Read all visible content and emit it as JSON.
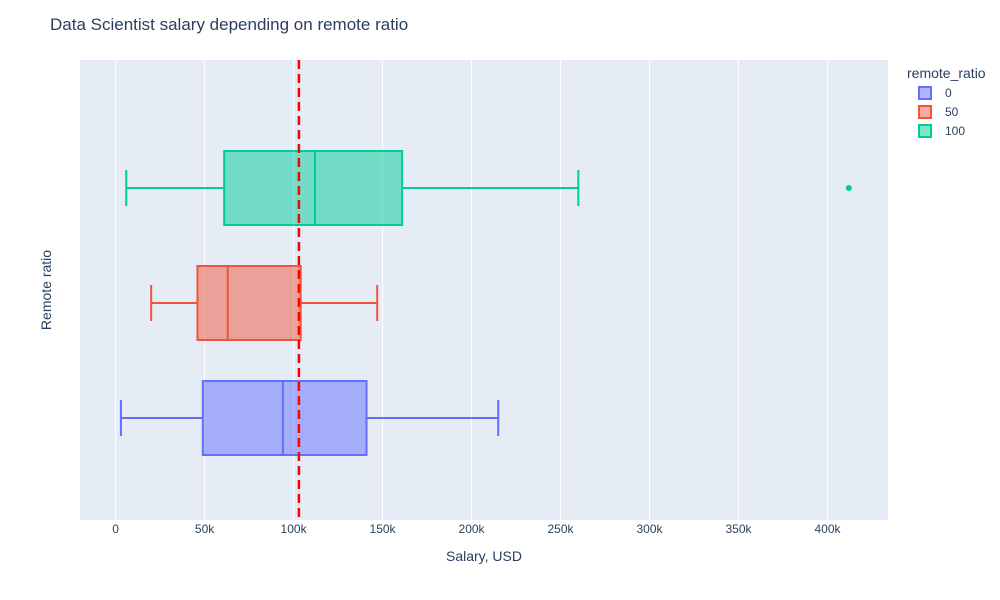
{
  "chart_data": {
    "type": "box",
    "orientation": "horizontal",
    "title": "Data Scientist salary depending on remote ratio",
    "xlabel": "Salary, USD",
    "ylabel": "Remote ratio",
    "xlim": [
      -20000,
      434000
    ],
    "xticks": [
      0,
      50000,
      100000,
      150000,
      200000,
      250000,
      300000,
      350000,
      400000
    ],
    "xtick_labels": [
      "0",
      "50k",
      "100k",
      "150k",
      "200k",
      "250k",
      "300k",
      "350k",
      "400k"
    ],
    "grid": true,
    "background": "#e5ecf6",
    "legend_title": "remote_ratio",
    "legend_position": "top-right",
    "reference_line": {
      "x": 103000,
      "color": "#ff0000",
      "style": "dashed"
    },
    "series": [
      {
        "name": "0",
        "color": "#636efa",
        "min": 3000,
        "q1": 49000,
        "median": 94000,
        "q3": 141000,
        "max": 215000,
        "outliers": []
      },
      {
        "name": "50",
        "color": "#ef553b",
        "min": 20000,
        "q1": 46000,
        "median": 63000,
        "q3": 104000,
        "max": 147000,
        "outliers": []
      },
      {
        "name": "100",
        "color": "#00cc96",
        "min": 6000,
        "q1": 61000,
        "median": 112000,
        "q3": 161000,
        "max": 260000,
        "outliers": [
          412000
        ]
      }
    ]
  }
}
